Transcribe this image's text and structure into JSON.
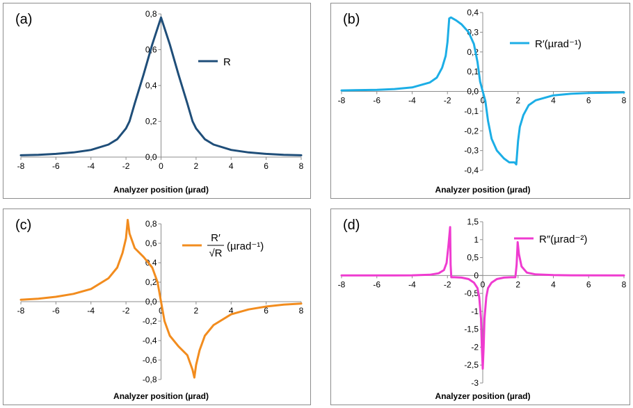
{
  "chart_data": [
    {
      "id": "a",
      "type": "line",
      "panel_label": "(a)",
      "xlabel": "Analyzer position (µrad)",
      "ylabel": "",
      "xlim": [
        -8,
        8
      ],
      "ylim": [
        0,
        0.8
      ],
      "xticks": [
        "-8",
        "-6",
        "-4",
        "-2",
        "0",
        "2",
        "4",
        "6",
        "8"
      ],
      "yticks": [
        "0,0",
        "0,2",
        "0,4",
        "0,6",
        "0,8"
      ],
      "legend": {
        "position": "top-right"
      },
      "series": [
        {
          "name": "R",
          "color": "#1f4e79",
          "x": [
            -8,
            -7,
            -6,
            -5,
            -4,
            -3,
            -2.5,
            -2,
            -1.8,
            -1.5,
            -1,
            -0.5,
            0,
            0.5,
            1,
            1.5,
            1.8,
            2,
            2.5,
            3,
            4,
            5,
            6,
            7,
            8
          ],
          "y": [
            0.01,
            0.013,
            0.018,
            0.026,
            0.04,
            0.07,
            0.1,
            0.16,
            0.2,
            0.3,
            0.46,
            0.63,
            0.78,
            0.63,
            0.46,
            0.3,
            0.2,
            0.16,
            0.1,
            0.07,
            0.04,
            0.026,
            0.018,
            0.013,
            0.01
          ]
        }
      ]
    },
    {
      "id": "b",
      "type": "line",
      "panel_label": "(b)",
      "xlabel": "Analyzer position (µrad)",
      "ylabel": "",
      "xlim": [
        -8,
        8
      ],
      "ylim": [
        -0.4,
        0.4
      ],
      "xticks": [
        "-8",
        "-6",
        "-4",
        "-2",
        "0",
        "2",
        "4",
        "6",
        "8"
      ],
      "yticks": [
        "-0,4",
        "-0,3",
        "-0,2",
        "-0,1",
        "0,0",
        "0,1",
        "0,2",
        "0,3",
        "0,4"
      ],
      "legend": {
        "position": "top-right"
      },
      "series": [
        {
          "name": "R′(µrad⁻¹)",
          "color": "#1caee6",
          "x": [
            -8,
            -6,
            -5,
            -4,
            -3,
            -2.6,
            -2.3,
            -2.1,
            -2.0,
            -1.9,
            -1.8,
            -1.5,
            -1.2,
            -0.8,
            -0.5,
            -0.3,
            -0.15,
            0,
            0.15,
            0.3,
            0.5,
            0.8,
            1.2,
            1.5,
            1.8,
            1.9,
            2.0,
            2.1,
            2.3,
            2.6,
            3,
            4,
            5,
            6,
            8
          ],
          "y": [
            0.005,
            0.008,
            0.012,
            0.02,
            0.045,
            0.07,
            0.12,
            0.18,
            0.25,
            0.37,
            0.375,
            0.36,
            0.34,
            0.3,
            0.24,
            0.15,
            0.05,
            0,
            -0.05,
            -0.15,
            -0.24,
            -0.3,
            -0.34,
            -0.36,
            -0.36,
            -0.37,
            -0.25,
            -0.18,
            -0.12,
            -0.07,
            -0.045,
            -0.02,
            -0.012,
            -0.008,
            -0.005
          ]
        }
      ]
    },
    {
      "id": "c",
      "type": "line",
      "panel_label": "(c)",
      "xlabel": "Analyzer position (µrad)",
      "ylabel": "",
      "xlim": [
        -8,
        8
      ],
      "ylim": [
        -0.8,
        0.8
      ],
      "xticks": [
        "-8",
        "-6",
        "-4",
        "-2",
        "0",
        "2",
        "4",
        "6",
        "8"
      ],
      "yticks": [
        "-0,8",
        "-0,6",
        "-0,4",
        "-0,2",
        "0,0",
        "0,2",
        "0,4",
        "0,6",
        "0,8"
      ],
      "legend": {
        "position": "top-right"
      },
      "series": [
        {
          "name": "R′/√R (µrad⁻¹)",
          "color": "#f28c1e",
          "x": [
            -8,
            -7,
            -6,
            -5,
            -4,
            -3,
            -2.5,
            -2.2,
            -2.0,
            -1.9,
            -1.8,
            -1.5,
            -1.0,
            -0.5,
            -0.2,
            0,
            0.2,
            0.5,
            1.0,
            1.5,
            1.8,
            1.9,
            2.0,
            2.2,
            2.5,
            3,
            4,
            5,
            6,
            7,
            8
          ],
          "y": [
            0.02,
            0.03,
            0.05,
            0.08,
            0.13,
            0.24,
            0.35,
            0.5,
            0.65,
            0.84,
            0.7,
            0.55,
            0.46,
            0.35,
            0.2,
            0,
            -0.2,
            -0.35,
            -0.46,
            -0.55,
            -0.7,
            -0.78,
            -0.65,
            -0.5,
            -0.35,
            -0.24,
            -0.13,
            -0.08,
            -0.05,
            -0.03,
            -0.02
          ]
        }
      ]
    },
    {
      "id": "d",
      "type": "line",
      "panel_label": "(d)",
      "xlabel": "Analyzer position (µrad)",
      "ylabel": "",
      "xlim": [
        -8,
        8
      ],
      "ylim": [
        -3,
        1.5
      ],
      "xticks": [
        "-8",
        "-6",
        "-4",
        "-2",
        "0",
        "2",
        "4",
        "6",
        "8"
      ],
      "yticks": [
        "-3",
        "-2,5",
        "-2",
        "-1,5",
        "-1",
        "-0,5",
        "0",
        "0,5",
        "1",
        "1,5"
      ],
      "legend": {
        "position": "top-right"
      },
      "series": [
        {
          "name": "R″(µrad⁻²)",
          "color": "#ef3bd0",
          "x": [
            -8,
            -5,
            -4,
            -3,
            -2.5,
            -2.2,
            -2.05,
            -1.95,
            -1.85,
            -1.82,
            -1.78,
            -1.6,
            -1.2,
            -0.8,
            -0.5,
            -0.3,
            -0.2,
            -0.1,
            -0.05,
            0,
            0.05,
            0.1,
            0.2,
            0.3,
            0.5,
            0.8,
            1.2,
            1.6,
            1.85,
            1.92,
            1.98,
            2.05,
            2.2,
            2.5,
            3,
            4,
            5,
            8
          ],
          "y": [
            0,
            0,
            0.005,
            0.02,
            0.06,
            0.15,
            0.35,
            0.8,
            1.35,
            0.3,
            -0.05,
            -0.05,
            -0.06,
            -0.1,
            -0.2,
            -0.35,
            -0.6,
            -1.2,
            -2.0,
            -2.6,
            -2.0,
            -1.2,
            -0.6,
            -0.35,
            -0.2,
            -0.1,
            -0.06,
            -0.05,
            -0.05,
            0.3,
            0.93,
            0.6,
            0.25,
            0.08,
            0.03,
            0.01,
            0.005,
            0
          ]
        }
      ]
    }
  ]
}
